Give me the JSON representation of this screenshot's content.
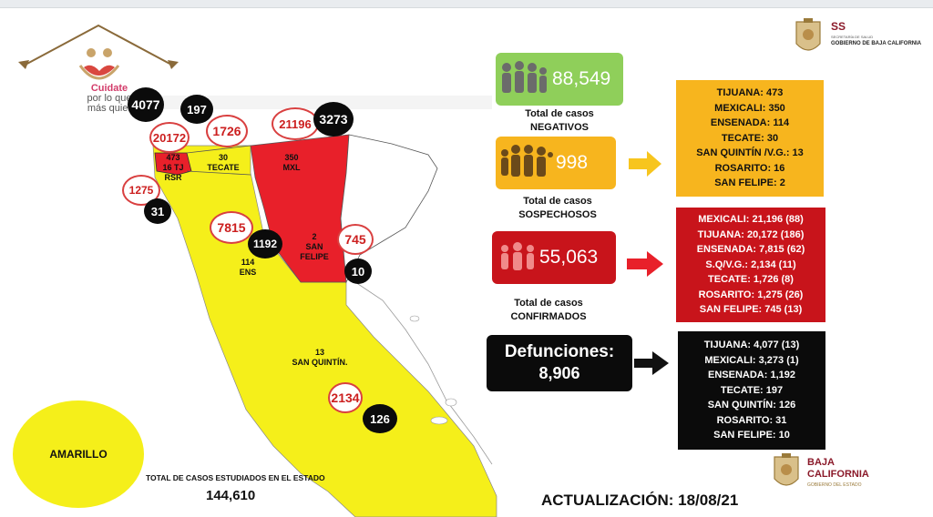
{
  "logos": {
    "campaign_line1": "Cuidate",
    "campaign_line2": "por lo que",
    "campaign_line3": "más quier",
    "ss_title": "SS",
    "ss_subtitle": "SECRETARÍA DE SALUD",
    "ss_gov": "GOBIERNO DE BAJA CALIFORNIA",
    "bc_line1": "BAJA",
    "bc_line2": "CALIFORNIA",
    "bc_line3": "GOBIERNO DEL ESTADO"
  },
  "map": {
    "region_labels": {
      "tj": "473\n16 TJ\nRSR",
      "tecate": "30\nTECATE",
      "mxl": "350\nMXL",
      "ens": "114\nENS",
      "sanfelipe": "2\nSAN\nFELIPE",
      "sanquintin": "13\nSAN QUINTÍN."
    },
    "confirmed_circles": {
      "tijuana": "20172",
      "tecate": "1726",
      "mexicali": "21196",
      "rosarito": "1275",
      "ensenada": "7815",
      "sanfelipe": "745",
      "sanquintin": "2134"
    },
    "death_circles": {
      "tijuana": "4077",
      "tecate": "197",
      "mexicali": "3273",
      "rosarito": "31",
      "ensenada": "1192",
      "sanfelipe": "10",
      "sanquintin": "126"
    },
    "colors": {
      "yellow": "#f5ef1a",
      "red": "#e8202a",
      "white": "#ffffff"
    }
  },
  "semaforo": {
    "label": "AMARILLO",
    "color": "#f5ef1a"
  },
  "total": {
    "label": "TOTAL DE CASOS ESTUDIADOS EN EL ESTADO",
    "value": "144,610"
  },
  "negativos": {
    "value": "88,549",
    "caption_line1": "Total de casos",
    "caption_line2": "NEGATIVOS",
    "color": "#8fcf5a"
  },
  "sospechosos": {
    "value": "998",
    "caption_line1": "Total de casos",
    "caption_line2": "SOSPECHOSOS",
    "color": "#f7b51e",
    "list": [
      "TIJUANA: 473",
      "MEXICALI: 350",
      "ENSENADA: 114",
      "TECATE: 30",
      "SAN QUINTÍN /V.G.: 13",
      "ROSARITO: 16",
      "SAN FELIPE: 2"
    ]
  },
  "confirmados": {
    "value": "55,063",
    "caption_line1": "Total de casos",
    "caption_line2": "CONFIRMADOS",
    "color": "#c8141b",
    "list": [
      "MEXICALI: 21,196 (88)",
      "TIJUANA: 20,172 (186)",
      "ENSENADA: 7,815 (62)",
      "S.Q/V.G.: 2,134 (11)",
      "TECATE: 1,726  (8)",
      "ROSARITO: 1,275  (26)",
      "SAN FELIPE: 745 (13)"
    ]
  },
  "defunciones": {
    "label": "Defunciones:",
    "value": "8,906",
    "list": [
      "TIJUANA: 4,077 (13)",
      "MEXICALI: 3,273 (1)",
      "ENSENADA: 1,192",
      "TECATE: 197",
      "SAN QUINTÍN: 126",
      "ROSARITO: 31",
      "SAN FELIPE: 10"
    ]
  },
  "actualizacion": "ACTUALIZACIÓN: 18/08/21"
}
